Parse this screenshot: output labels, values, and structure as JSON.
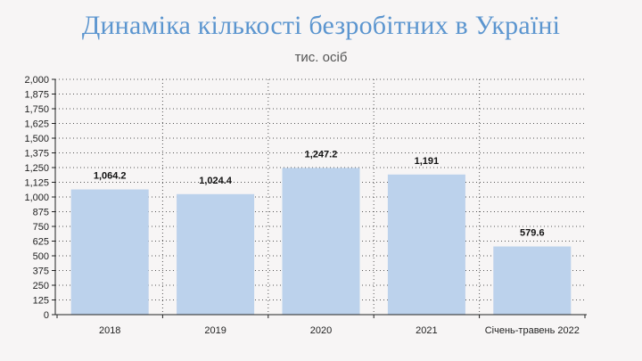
{
  "header": {
    "title": "Динаміка кількості безробітних в Україні",
    "subtitle": "тис. осіб"
  },
  "colors": {
    "bar": "#bcd2ec",
    "title": "#5b95cf",
    "axis": "#222222",
    "grid": "#555555"
  },
  "chart_data": {
    "type": "bar",
    "title": "Динаміка кількості безробітних в Україні",
    "subtitle": "тис. осіб",
    "categories": [
      "2018",
      "2019",
      "2020",
      "2021",
      "Січень-травень 2022"
    ],
    "values": [
      1064.2,
      1024.4,
      1247.2,
      1191,
      579.6
    ],
    "value_labels": [
      "1,064.2",
      "1,024.4",
      "1,247.2",
      "1,191",
      "579.6"
    ],
    "ylim": [
      0,
      2000
    ],
    "yticks": [
      0,
      125,
      250,
      375,
      500,
      625,
      750,
      875,
      1000,
      1125,
      1250,
      1375,
      1500,
      1625,
      1750,
      1875,
      2000
    ],
    "ytick_labels": [
      "0",
      "125",
      "250",
      "375",
      "500",
      "625",
      "750",
      "875",
      "1,000",
      "1,125",
      "1,250",
      "1,375",
      "1,500",
      "1,625",
      "1,750",
      "1,875",
      "2,000"
    ],
    "grid": "dotted",
    "legend": "none"
  }
}
